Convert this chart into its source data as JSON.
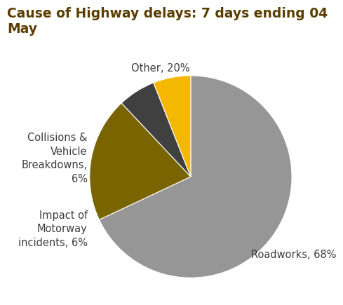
{
  "title": "Cause of Highway delays: 7 days ending 04 May",
  "slices": [
    {
      "label": "Roadworks, 68%",
      "value": 68,
      "color": "#969696"
    },
    {
      "label": "Other, 20%",
      "value": 20,
      "color": "#7a6400"
    },
    {
      "label": "Collisions &\nVehicle\nBreakdowns,\n6%",
      "value": 6,
      "color": "#404040"
    },
    {
      "label": "Impact of\nMotorway\nincidents, 6%",
      "value": 6,
      "color": "#f5b800"
    }
  ],
  "title_color": "#5a3e00",
  "label_color": "#3d3d3d",
  "background_color": "#ffffff",
  "title_fontsize": 13.5,
  "label_fontsize": 10.5,
  "startangle": 90
}
